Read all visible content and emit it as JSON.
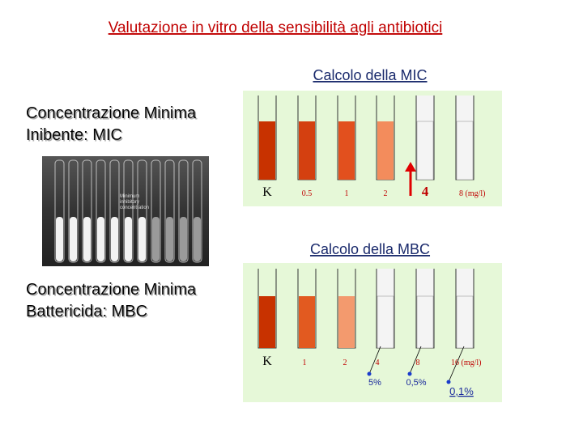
{
  "title": "Valutazione in vitro della sensibilità agli antibiotici",
  "mic": {
    "heading": "Calcolo della MIC",
    "definition": [
      "Concentrazione Minima",
      "Inibente: MIC"
    ],
    "tube_labels": [
      "K",
      "0.5",
      "1",
      "2",
      "4",
      "8 (mg/l)"
    ]
  },
  "photo": {
    "caption": [
      "Minimum",
      "inhibitory",
      "concentration"
    ]
  },
  "mbc": {
    "heading": "Calcolo della MBC",
    "definition": [
      "Concentrazione Minima",
      "Battericida: MBC"
    ],
    "tube_labels": [
      "K",
      "1",
      "2",
      "4",
      "8",
      "16 (mg/l)"
    ],
    "subculture_labels": [
      "5%",
      "0,5%",
      "0,1%"
    ]
  }
}
